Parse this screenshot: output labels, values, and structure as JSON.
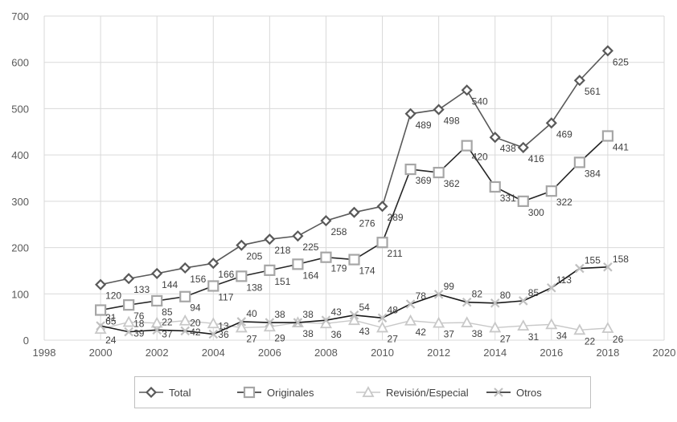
{
  "chart_data": {
    "type": "line",
    "title": "",
    "xlabel": "",
    "ylabel": "",
    "xlim": [
      1998,
      2020
    ],
    "ylim": [
      0,
      700
    ],
    "x_ticks": [
      "1998",
      "2000",
      "2002",
      "2004",
      "2006",
      "2008",
      "2010",
      "2012",
      "2014",
      "2016",
      "2018",
      "2020"
    ],
    "y_ticks": [
      "0",
      "100",
      "200",
      "300",
      "400",
      "500",
      "600",
      "700"
    ],
    "x": [
      2000,
      2001,
      2002,
      2003,
      2004,
      2005,
      2006,
      2007,
      2008,
      2009,
      2010,
      2011,
      2012,
      2013,
      2014,
      2015,
      2016,
      2017,
      2018
    ],
    "grid": true,
    "legend_position": "bottom",
    "series": [
      {
        "name": "Total",
        "color": "#595959",
        "marker": "diamond",
        "values": [
          120,
          133,
          144,
          156,
          166,
          205,
          218,
          225,
          258,
          276,
          289,
          489,
          498,
          540,
          438,
          416,
          469,
          561,
          625
        ],
        "labels": [
          "120",
          "133",
          "144",
          "156",
          "166",
          "205",
          "218",
          "225",
          "258",
          "276",
          "289",
          "489",
          "498",
          "540",
          "438",
          "416",
          "469",
          "561",
          "625"
        ]
      },
      {
        "name": "Originales",
        "color": "#a6a6a6",
        "marker": "square",
        "values": [
          65,
          76,
          85,
          94,
          117,
          138,
          151,
          164,
          179,
          174,
          211,
          369,
          362,
          420,
          331,
          300,
          322,
          384,
          441
        ],
        "labels": [
          "65",
          "76",
          "85",
          "94",
          "117",
          "138",
          "151",
          "164",
          "179",
          "174",
          "211",
          "369",
          "362",
          "420",
          "331",
          "300",
          "322",
          "384",
          "441"
        ]
      },
      {
        "name": "Revisión/Especial",
        "color": "#c8c8c8",
        "marker": "triangle",
        "values": [
          24,
          39,
          37,
          42,
          36,
          27,
          29,
          38,
          36,
          43,
          27,
          42,
          37,
          38,
          27,
          31,
          34,
          22,
          26
        ],
        "labels": [
          "24",
          "39",
          "37",
          "42",
          "36",
          "27",
          "29",
          "38",
          "36",
          "43",
          "27",
          "42",
          "37",
          "38",
          "27",
          "31",
          "34",
          "22",
          "26"
        ]
      },
      {
        "name": "Otros",
        "color": "#1a1a1a",
        "marker": "x",
        "values": [
          31,
          18,
          22,
          20,
          13,
          40,
          38,
          38,
          43,
          54,
          48,
          78,
          99,
          82,
          80,
          85,
          113,
          155,
          158
        ],
        "labels": [
          "31",
          "18",
          "22",
          "20",
          "13",
          "40",
          "38",
          "38",
          "43",
          "54",
          "48",
          "78",
          "99",
          "82",
          "80",
          "85",
          "113",
          "155",
          "158"
        ]
      }
    ]
  }
}
